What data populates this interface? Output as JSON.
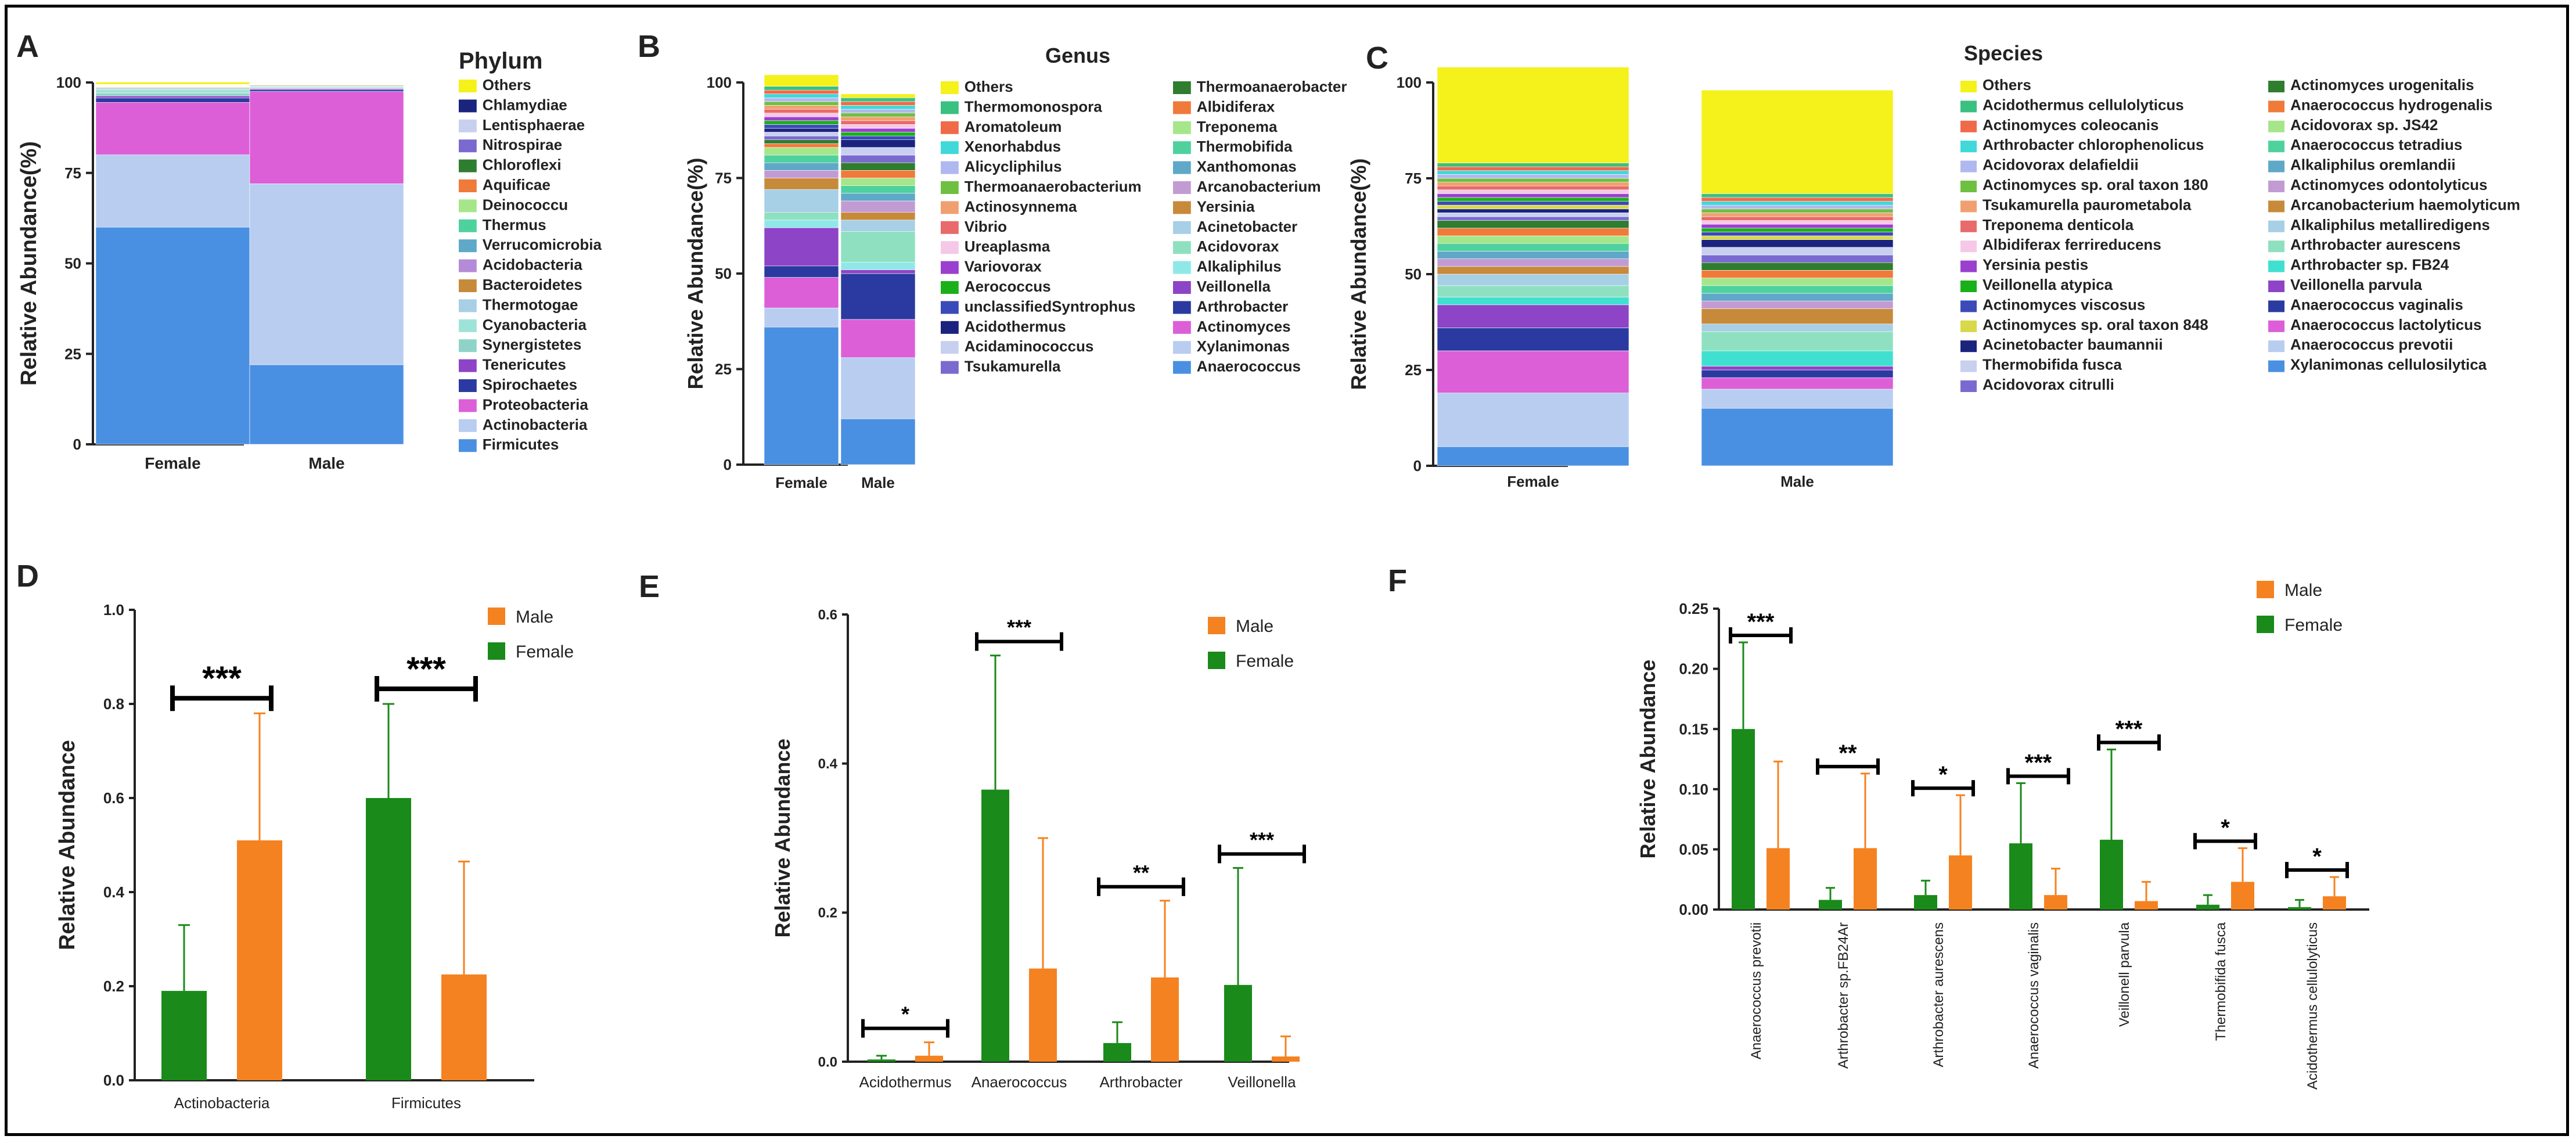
{
  "palette": {
    "male": "#f58220",
    "female": "#1a8a1a",
    "axis": "#222222"
  },
  "chart_data": [
    {
      "panel": "A",
      "type": "stacked-bar",
      "title": "Phylum",
      "ylabel": "Relative Abundance(%)",
      "categories": [
        "Female",
        "Male"
      ],
      "yticks": [
        "0",
        "25",
        "50",
        "75",
        "100"
      ],
      "ylim": [
        0,
        100
      ],
      "series": [
        {
          "name": "Firmicutes",
          "color": "#4a90e2",
          "values": [
            60,
            22
          ]
        },
        {
          "name": "Actinobacteria",
          "color": "#b8cdf0",
          "values": [
            20,
            50
          ]
        },
        {
          "name": "Proteobacteria",
          "color": "#dc5fd7",
          "values": [
            14.5,
            25.5
          ]
        },
        {
          "name": "Spirochaetes",
          "color": "#2a3aa0",
          "values": [
            1.2,
            0.5
          ]
        },
        {
          "name": "Tenericutes",
          "color": "#8e44c6",
          "values": [
            0.6,
            0.3
          ]
        },
        {
          "name": "Synergistetes",
          "color": "#8fd3c8",
          "values": [
            0.8,
            0.2
          ]
        },
        {
          "name": "Cyanobacteria",
          "color": "#9fe3d8",
          "values": [
            1.0,
            0.3
          ]
        },
        {
          "name": "Thermotogae",
          "color": "#a7cfe6",
          "values": [
            0.3,
            0.2
          ]
        },
        {
          "name": "Bacteroidetes",
          "color": "#c78a3a",
          "values": [
            0.2,
            0.2
          ]
        },
        {
          "name": "Acidobacteria",
          "color": "#b48bd6",
          "values": [
            0.1,
            0.1
          ]
        },
        {
          "name": "Verrucomicrobia",
          "color": "#5fa8c8",
          "values": [
            0.1,
            0.1
          ]
        },
        {
          "name": "Thermus",
          "color": "#4fd19e",
          "values": [
            0.1,
            0.1
          ]
        },
        {
          "name": "Deinococcu",
          "color": "#a6e68a",
          "values": [
            0.1,
            0.1
          ]
        },
        {
          "name": "Aquificae",
          "color": "#f07a3a",
          "values": [
            0.1,
            0.1
          ]
        },
        {
          "name": "Chloroflexi",
          "color": "#2f7d2f",
          "values": [
            0.1,
            0.1
          ]
        },
        {
          "name": "Nitrospirae",
          "color": "#7a6ad0",
          "values": [
            0.1,
            0.1
          ]
        },
        {
          "name": "Lentisphaerae",
          "color": "#c8d0f0",
          "values": [
            0.1,
            0.1
          ]
        },
        {
          "name": "Chlamydiae",
          "color": "#1a237e",
          "values": [
            0.1,
            0.1
          ]
        },
        {
          "name": "Others",
          "color": "#f5f11a",
          "values": [
            0.6,
            0.1
          ]
        }
      ]
    },
    {
      "panel": "B",
      "type": "stacked-bar",
      "title": "Genus",
      "ylabel": "Relative Abundance(%)",
      "categories": [
        "Female",
        "Male"
      ],
      "yticks": [
        "0",
        "25",
        "50",
        "75",
        "100"
      ],
      "ylim": [
        0,
        100
      ],
      "series": [
        {
          "name": "Anaerococcus",
          "color": "#4a90e2",
          "values": [
            36,
            12
          ]
        },
        {
          "name": "Xylanimonas",
          "color": "#b8cdf0",
          "values": [
            5,
            16
          ]
        },
        {
          "name": "Actinomyces",
          "color": "#dc5fd7",
          "values": [
            8,
            10
          ]
        },
        {
          "name": "Arthrobacter",
          "color": "#2a3aa0",
          "values": [
            3,
            12
          ]
        },
        {
          "name": "Veillonella",
          "color": "#8e44c6",
          "values": [
            10,
            1
          ]
        },
        {
          "name": "Alkaliphilus",
          "color": "#8fe8e8",
          "values": [
            2,
            2
          ]
        },
        {
          "name": "Acidovorax",
          "color": "#8fe0c0",
          "values": [
            2,
            8
          ]
        },
        {
          "name": "Acinetobacter",
          "color": "#a7cfe6",
          "values": [
            6,
            3
          ]
        },
        {
          "name": "Yersinia",
          "color": "#c78a3a",
          "values": [
            3,
            2
          ]
        },
        {
          "name": "Arcanobacterium",
          "color": "#c39bd3",
          "values": [
            2,
            3
          ]
        },
        {
          "name": "Xanthomonas",
          "color": "#5fa8c8",
          "values": [
            2,
            2
          ]
        },
        {
          "name": "Thermobifida",
          "color": "#4fd19e",
          "values": [
            2,
            2
          ]
        },
        {
          "name": "Treponema",
          "color": "#a6e68a",
          "values": [
            2,
            2
          ]
        },
        {
          "name": "Albidiferax",
          "color": "#f07a3a",
          "values": [
            1,
            2
          ]
        },
        {
          "name": "Thermoanaerobacter",
          "color": "#2f7d2f",
          "values": [
            1,
            2
          ]
        },
        {
          "name": "Tsukamurella",
          "color": "#7a6ad0",
          "values": [
            1,
            2
          ]
        },
        {
          "name": "Acidaminococcus",
          "color": "#c8d0f0",
          "values": [
            1,
            2
          ]
        },
        {
          "name": "Acidothermus",
          "color": "#1a237e",
          "values": [
            1,
            2
          ]
        },
        {
          "name": "unclassifiedSyntrophus",
          "color": "#3a4ab8",
          "values": [
            1,
            1
          ]
        },
        {
          "name": "Aerococcus",
          "color": "#1ab01a",
          "values": [
            1,
            1
          ]
        },
        {
          "name": "Variovorax",
          "color": "#9b3fcf",
          "values": [
            1,
            1
          ]
        },
        {
          "name": "Ureaplasma",
          "color": "#f5c8e8",
          "values": [
            1,
            1
          ]
        },
        {
          "name": "Vibrio",
          "color": "#e86a6a",
          "values": [
            1,
            1
          ]
        },
        {
          "name": "Actinosynnema",
          "color": "#f0a070",
          "values": [
            1,
            1
          ]
        },
        {
          "name": "Thermoanaerobacterium",
          "color": "#6fc040",
          "values": [
            1,
            1
          ]
        },
        {
          "name": "Alicycliphilus",
          "color": "#b0b8f0",
          "values": [
            1,
            1
          ]
        },
        {
          "name": "Xenorhabdus",
          "color": "#40d8d8",
          "values": [
            1,
            1
          ]
        },
        {
          "name": "Aromatoleum",
          "color": "#f06a4a",
          "values": [
            1,
            1
          ]
        },
        {
          "name": "Thermomonospora",
          "color": "#3ac080",
          "values": [
            1,
            1
          ]
        },
        {
          "name": "Others",
          "color": "#f5f11a",
          "values": [
            3,
            1
          ]
        }
      ]
    },
    {
      "panel": "C",
      "type": "stacked-bar",
      "title": "Species",
      "ylabel": "Relative Abundance(%)",
      "categories": [
        "Female",
        "Male"
      ],
      "yticks": [
        "0",
        "25",
        "50",
        "75",
        "100"
      ],
      "ylim": [
        0,
        100
      ],
      "series": [
        {
          "name": "Xylanimonas cellulosilytica",
          "color": "#4a90e2",
          "values": [
            5,
            15
          ]
        },
        {
          "name": "Anaerococcus prevotii",
          "color": "#b8cdf0",
          "values": [
            14,
            5
          ]
        },
        {
          "name": "Anaerococcus lactolyticus",
          "color": "#dc5fd7",
          "values": [
            11,
            3
          ]
        },
        {
          "name": "Anaerococcus vaginalis",
          "color": "#2a3aa0",
          "values": [
            6,
            2
          ]
        },
        {
          "name": "Veillonella parvula",
          "color": "#8e44c6",
          "values": [
            6,
            1
          ]
        },
        {
          "name": "Arthrobacter sp. FB24",
          "color": "#40e0d0",
          "values": [
            2,
            4
          ]
        },
        {
          "name": "Arthrobacter aurescens",
          "color": "#8fe0c0",
          "values": [
            3,
            5
          ]
        },
        {
          "name": "Alkaliphilus metalliredigens",
          "color": "#a7cfe6",
          "values": [
            3,
            2
          ]
        },
        {
          "name": "Arcanobacterium haemolyticum",
          "color": "#c78a3a",
          "values": [
            2,
            4
          ]
        },
        {
          "name": "Actinomyces odontolyticus",
          "color": "#c39bd3",
          "values": [
            2,
            2
          ]
        },
        {
          "name": "Alkaliphilus oremlandii",
          "color": "#5fa8c8",
          "values": [
            2,
            2
          ]
        },
        {
          "name": "Anaerococcus tetradius",
          "color": "#4fd19e",
          "values": [
            2,
            2
          ]
        },
        {
          "name": "Acidovorax sp. JS42",
          "color": "#a6e68a",
          "values": [
            2,
            2
          ]
        },
        {
          "name": "Anaerococcus hydrogenalis",
          "color": "#f07a3a",
          "values": [
            2,
            2
          ]
        },
        {
          "name": "Actinomyces urogenitalis",
          "color": "#2f7d2f",
          "values": [
            2,
            2
          ]
        },
        {
          "name": "Acidovorax citrulli",
          "color": "#7a6ad0",
          "values": [
            1,
            2
          ]
        },
        {
          "name": "Thermobifida fusca",
          "color": "#c8d0f0",
          "values": [
            1,
            2
          ]
        },
        {
          "name": "Acinetobacter baumannii",
          "color": "#1a237e",
          "values": [
            1,
            2
          ]
        },
        {
          "name": "Actinomyces sp. oral taxon 848",
          "color": "#d8d84a",
          "values": [
            1,
            1
          ]
        },
        {
          "name": "Actinomyces viscosus",
          "color": "#3a4ab8",
          "values": [
            1,
            1
          ]
        },
        {
          "name": "Veillonella atypica",
          "color": "#1ab01a",
          "values": [
            1,
            1
          ]
        },
        {
          "name": "Yersinia pestis",
          "color": "#9b3fcf",
          "values": [
            1,
            1
          ]
        },
        {
          "name": "Albidiferax ferrireducens",
          "color": "#f5c8e8",
          "values": [
            1,
            1
          ]
        },
        {
          "name": "Treponema denticola",
          "color": "#e86a6a",
          "values": [
            1,
            1
          ]
        },
        {
          "name": "Tsukamurella paurometabola",
          "color": "#f0a070",
          "values": [
            1,
            1
          ]
        },
        {
          "name": "Actinomyces sp. oral taxon 180",
          "color": "#6fc040",
          "values": [
            1,
            1
          ]
        },
        {
          "name": "Acidovorax delafieldii",
          "color": "#b0b8f0",
          "values": [
            1,
            1
          ]
        },
        {
          "name": "Arthrobacter chlorophenolicus",
          "color": "#40d8d8",
          "values": [
            1,
            1
          ]
        },
        {
          "name": "Actinomyces coleocanis",
          "color": "#f06a4a",
          "values": [
            1,
            1
          ]
        },
        {
          "name": "Acidothermus cellulolyticus",
          "color": "#3ac080",
          "values": [
            1,
            1
          ]
        },
        {
          "name": "Others",
          "color": "#f5f11a",
          "values": [
            25,
            27
          ]
        }
      ]
    },
    {
      "panel": "D",
      "type": "bar",
      "ylabel": "Relative Abundance",
      "categories": [
        "Actinobacteria",
        "Firmicutes"
      ],
      "yticks": [
        "0.0",
        "0.2",
        "0.4",
        "0.6",
        "0.8",
        "1.0"
      ],
      "ylim": [
        0,
        1.0
      ],
      "legend": [
        "Male",
        "Female"
      ],
      "series": [
        {
          "name": "Female",
          "values": [
            0.19,
            0.6
          ],
          "errors": [
            0.14,
            0.2
          ]
        },
        {
          "name": "Male",
          "values": [
            0.51,
            0.225
          ],
          "errors": [
            0.27,
            0.24
          ]
        }
      ],
      "significance": [
        "***",
        "***"
      ]
    },
    {
      "panel": "E",
      "type": "bar",
      "ylabel": "Relative Abundance",
      "categories": [
        "Acidothermus",
        "Anaerococcus",
        "Arthrobacter",
        "Veillonella"
      ],
      "yticks": [
        "0.0",
        "0.2",
        "0.4",
        "0.6"
      ],
      "ylim": [
        0,
        0.6
      ],
      "legend": [
        "Male",
        "Female"
      ],
      "series": [
        {
          "name": "Female",
          "values": [
            0.003,
            0.365,
            0.025,
            0.103
          ],
          "errors": [
            0.005,
            0.18,
            0.028,
            0.157
          ]
        },
        {
          "name": "Male",
          "values": [
            0.008,
            0.125,
            0.113,
            0.007
          ],
          "errors": [
            0.018,
            0.175,
            0.103,
            0.027
          ]
        }
      ],
      "significance": [
        "*",
        "***",
        "**",
        "***"
      ]
    },
    {
      "panel": "F",
      "type": "bar",
      "ylabel": "Relative Abundance",
      "categories": [
        "Anaerococcus prevotii",
        "Arthrobacter sp.FB24Ar",
        "Arthrobacter aurescens",
        "Anaerococcus vaginalis",
        "Veillonell parvula",
        "Thermobifida fusca",
        "Acidothermus cellulolyticus"
      ],
      "yticks": [
        "0.00",
        "0.05",
        "0.10",
        "0.15",
        "0.20",
        "0.25"
      ],
      "ylim": [
        0,
        0.25
      ],
      "legend": [
        "Male",
        "Female"
      ],
      "series": [
        {
          "name": "Female",
          "values": [
            0.15,
            0.008,
            0.012,
            0.055,
            0.058,
            0.004,
            0.002
          ],
          "errors": [
            0.072,
            0.01,
            0.012,
            0.05,
            0.075,
            0.008,
            0.006
          ]
        },
        {
          "name": "Male",
          "values": [
            0.051,
            0.051,
            0.045,
            0.012,
            0.007,
            0.023,
            0.011
          ],
          "errors": [
            0.072,
            0.062,
            0.05,
            0.022,
            0.016,
            0.028,
            0.016
          ]
        }
      ],
      "significance": [
        "***",
        "**",
        "*",
        "***",
        "***",
        "*",
        "*"
      ]
    }
  ]
}
